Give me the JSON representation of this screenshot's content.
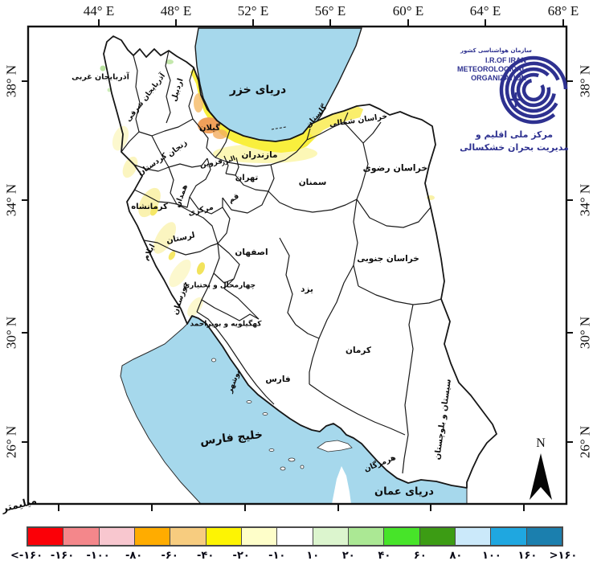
{
  "axes": {
    "top": [
      "44° E",
      "48° E",
      "52° E",
      "56° E",
      "60° E",
      "64° E",
      "68° E"
    ],
    "left": [
      "38° N",
      "34° N",
      "30° N",
      "26° N"
    ],
    "right": [
      "38° N",
      "34° N",
      "30° N",
      "26° N"
    ],
    "unit_label": "میلیمتر"
  },
  "logo": {
    "fa_top": "سازمان هواشناسی کشور",
    "en_line1": "I.R.OF IRAN",
    "en_line2": "METEOROLOGICAL",
    "en_line3": "ORGANIZATION",
    "fa_bottom1": "مرکز ملی اقلیم و",
    "fa_bottom2": "مدیریت بحران خشکسالی",
    "color": "#2e3190"
  },
  "north_arrow_label": "N",
  "seas": {
    "caspian": "دریای خزر",
    "persian_gulf": "خلیج فارس",
    "oman": "دریای عمان",
    "color": "#a6d8ec"
  },
  "provinces": [
    "آذربایجان غربی",
    "آذربایجان شرقی",
    "اردبیل",
    "گیلان",
    "زنجان",
    "قزوین",
    "البرز",
    "مازندران",
    "گلستان",
    "خراسان شمالی",
    "خراسان رضوی",
    "سمنان",
    "تهران",
    "قم",
    "مرکزی",
    "همدان",
    "کردستان",
    "کرمانشاه",
    "ایلام",
    "لرستان",
    "خوزستان",
    "اصفهان",
    "چهارمحال و بختیاری",
    "کهگیلویه و بویراحمد",
    "بوشهر",
    "فارس",
    "یزد",
    "کرمان",
    "خراسان جنوبی",
    "سیستان و بلوچستان",
    "هرمزگان"
  ],
  "colorbar": {
    "labels": [
      "<-۱۶۰",
      "-۱۶۰",
      "-۱۰۰",
      "-۸۰",
      "-۶۰",
      "-۴۰",
      "-۲۰",
      "-۱۰",
      "۱۰",
      "۲۰",
      "۴۰",
      "۶۰",
      "۸۰",
      "۱۰۰",
      "۱۶۰",
      ">۱۶۰"
    ],
    "colors": [
      "#fb0007",
      "#f4878b",
      "#f8c7cf",
      "#ffac00",
      "#f7cc7f",
      "#fdf403",
      "#fefec9",
      "#ffffff",
      "#dcf5ce",
      "#abe894",
      "#47e429",
      "#3c9c14",
      "#cbe9fa",
      "#1fa7e0",
      "#1b7fae"
    ]
  }
}
